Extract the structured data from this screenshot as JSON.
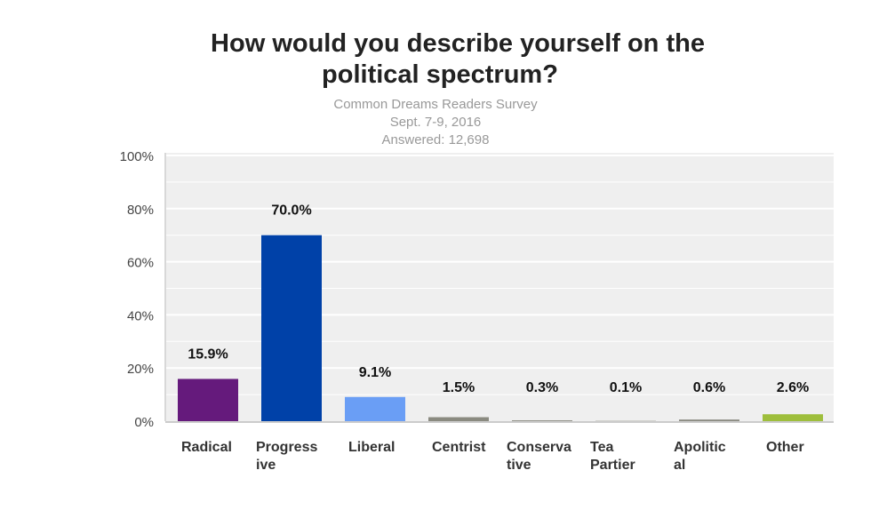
{
  "chart_data": {
    "type": "bar",
    "title_lines": [
      "How would you describe yourself on the",
      "political spectrum?"
    ],
    "subtitle_lines": [
      "Common Dreams Readers Survey",
      "Sept. 7-9, 2016",
      "Answered: 12,698"
    ],
    "categories": [
      [
        "Radical"
      ],
      [
        "Progress",
        "ive"
      ],
      [
        "Liberal"
      ],
      [
        "Centrist"
      ],
      [
        "Conserva",
        "tive"
      ],
      [
        "Tea",
        "Partier"
      ],
      [
        "Apolitic",
        "al"
      ],
      [
        "Other"
      ]
    ],
    "values": [
      15.9,
      70.0,
      9.1,
      1.5,
      0.3,
      0.1,
      0.6,
      2.6
    ],
    "data_labels": [
      "15.9%",
      "70.0%",
      "9.1%",
      "1.5%",
      "0.3%",
      "0.1%",
      "0.6%",
      "2.6%"
    ],
    "colors": [
      "#651a7c",
      "#0041a8",
      "#6a9ef5",
      "#8a8a80",
      "#8a8a80",
      "#8a8a80",
      "#8a8a80",
      "#9ebe3c"
    ],
    "yticks": [
      "0%",
      "20%",
      "40%",
      "60%",
      "80%",
      "100%"
    ],
    "ylim": [
      0,
      100
    ],
    "grid": true,
    "xlabel": "",
    "ylabel": ""
  }
}
